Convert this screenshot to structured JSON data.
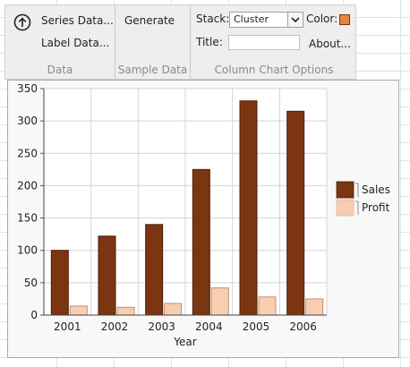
{
  "ribbon": {
    "data_group": {
      "series_data_label": "Series Data...",
      "label_data_label": "Label Data...",
      "group_label": "Data"
    },
    "sample_group": {
      "generate_label": "Generate",
      "group_label": "Sample Data"
    },
    "options_group": {
      "stack_label": "Stack:",
      "stack_value": "Cluster",
      "color_label": "Color:",
      "color_value": "#e8823a",
      "title_label": "Title:",
      "title_value": "",
      "about_label": "About...",
      "group_label": "Column Chart Options"
    }
  },
  "chart_data": {
    "type": "bar",
    "categories": [
      "2001",
      "2002",
      "2003",
      "2004",
      "2005",
      "2006"
    ],
    "series": [
      {
        "name": "Sales",
        "values": [
          100,
          122,
          140,
          225,
          331,
          315
        ],
        "color": "#7b3510"
      },
      {
        "name": "Profit",
        "values": [
          14,
          12,
          18,
          42,
          28,
          25
        ],
        "color": "#f8cdb0"
      }
    ],
    "xlabel": "Year",
    "ylabel": "",
    "ylim": [
      0,
      350
    ],
    "yticks": [
      0,
      50,
      100,
      150,
      200,
      250,
      300,
      350
    ],
    "grid": true,
    "legend": "right"
  }
}
